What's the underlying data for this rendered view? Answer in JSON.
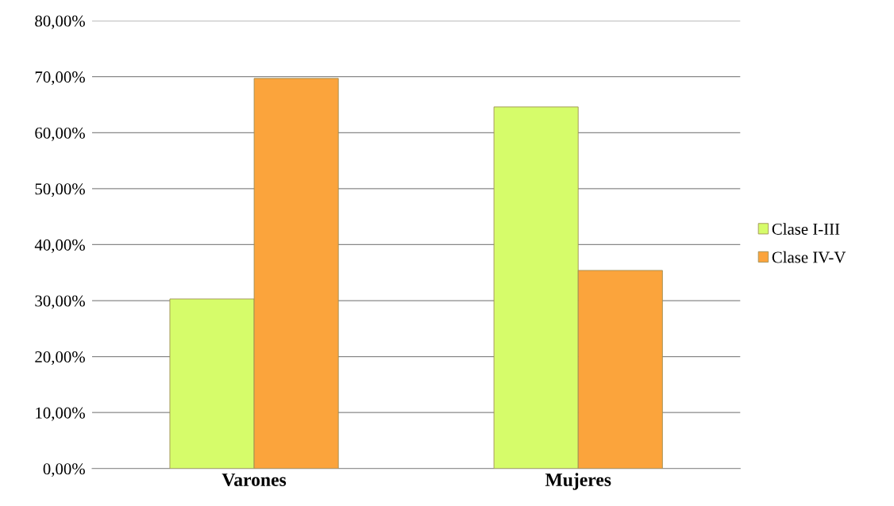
{
  "chart_data": {
    "type": "bar",
    "categories": [
      "Varones",
      "Mujeres"
    ],
    "series": [
      {
        "name": "Clase I-III",
        "color": "#d6fc6a",
        "values": [
          30.3,
          64.6
        ]
      },
      {
        "name": "Clase IV-V",
        "color": "#fba43c",
        "values": [
          69.7,
          35.4
        ]
      }
    ],
    "ylim": [
      0,
      80
    ],
    "yticks": [
      {
        "value": 0,
        "label": "0,00%"
      },
      {
        "value": 10,
        "label": "10,00%"
      },
      {
        "value": 20,
        "label": "20,00%"
      },
      {
        "value": 30,
        "label": "30,00%"
      },
      {
        "value": 40,
        "label": "40,00%"
      },
      {
        "value": 50,
        "label": "50,00%"
      },
      {
        "value": 60,
        "label": "60,00%"
      },
      {
        "value": 70,
        "label": "70,00%"
      },
      {
        "value": 80,
        "label": "80,00%"
      }
    ],
    "grid": "y",
    "legend": "right"
  }
}
